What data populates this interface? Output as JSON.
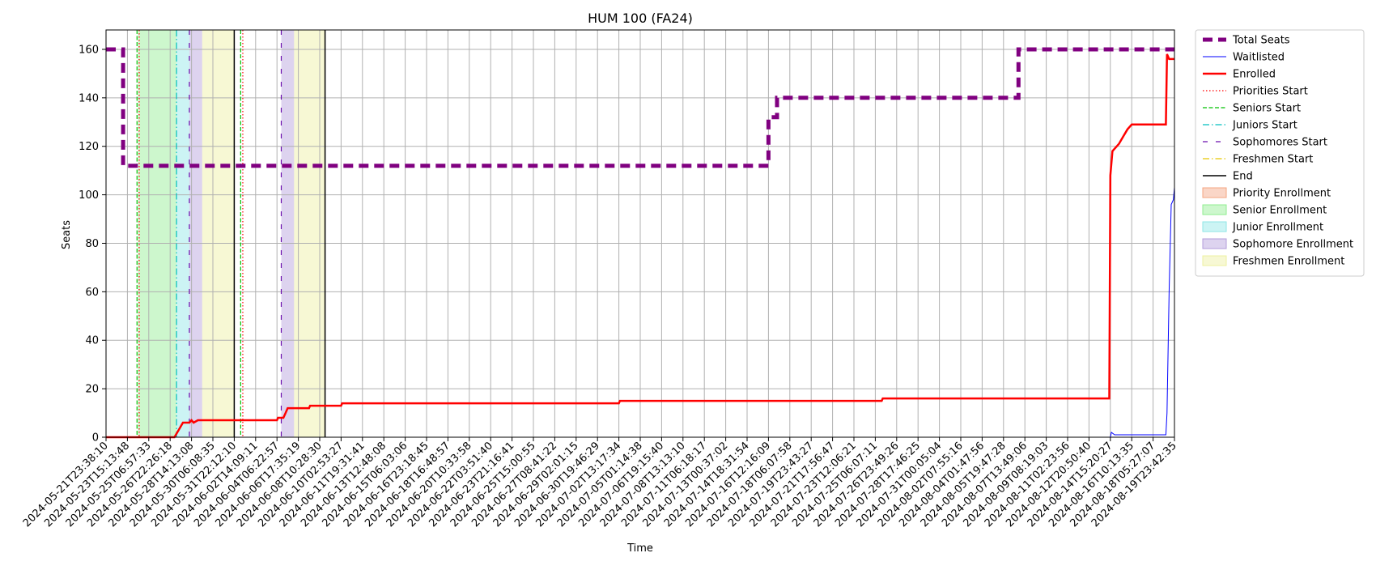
{
  "chart_data": {
    "type": "line",
    "title": "HUM 100 (FA24)",
    "xlabel": "Time",
    "ylabel": "Seats",
    "ylim": [
      0,
      168
    ],
    "y_ticks": [
      0,
      20,
      40,
      60,
      80,
      100,
      120,
      140,
      160
    ],
    "grid": true,
    "legend_position": "outside-right",
    "x_tick_labels": [
      "2024-05-21T23:38:10",
      "2024-05-23T15:13:48",
      "2024-05-25T06:57:33",
      "2024-05-26T22:26:18",
      "2024-05-28T14:13:08",
      "2024-05-30T06:08:35",
      "2024-05-31T22:12:10",
      "2024-06-02T14:09:11",
      "2024-06-04T06:22:57",
      "2024-06-06T17:35:19",
      "2024-06-08T10:28:30",
      "2024-06-10T02:53:27",
      "2024-06-11T19:31:41",
      "2024-06-13T12:48:08",
      "2024-06-15T06:03:06",
      "2024-06-16T23:18:45",
      "2024-06-18T16:48:57",
      "2024-06-20T10:33:58",
      "2024-06-22T03:51:40",
      "2024-06-23T21:16:41",
      "2024-06-25T15:00:55",
      "2024-06-27T08:41:22",
      "2024-06-29T02:01:15",
      "2024-06-30T19:46:29",
      "2024-07-02T13:17:34",
      "2024-07-05T01:14:38",
      "2024-07-06T19:15:40",
      "2024-07-08T13:13:10",
      "2024-07-11T06:18:17",
      "2024-07-13T00:37:02",
      "2024-07-14T18:31:54",
      "2024-07-16T12:16:09",
      "2024-07-18T06:07:58",
      "2024-07-19T23:43:27",
      "2024-07-21T17:56:47",
      "2024-07-23T12:06:21",
      "2024-07-25T06:07:11",
      "2024-07-26T23:49:26",
      "2024-07-28T17:46:25",
      "2024-07-31T00:05:04",
      "2024-08-02T07:55:16",
      "2024-08-04T01:47:56",
      "2024-08-05T19:47:28",
      "2024-08-07T13:49:06",
      "2024-08-09T08:19:03",
      "2024-08-11T02:23:56",
      "2024-08-12T20:50:40",
      "2024-08-14T15:20:27",
      "2024-08-16T10:13:35",
      "2024-08-18T05:27:07",
      "2024-08-19T23:42:35"
    ],
    "series": [
      {
        "name": "Total Seats",
        "color": "#800080",
        "style": "dashed",
        "width": 5,
        "points": [
          [
            0,
            160
          ],
          [
            0.8,
            160
          ],
          [
            0.8,
            112
          ],
          [
            31.0,
            112
          ],
          [
            31.0,
            132
          ],
          [
            31.4,
            132
          ],
          [
            31.4,
            140
          ],
          [
            42.7,
            140
          ],
          [
            42.7,
            160
          ],
          [
            50.0,
            160
          ]
        ]
      },
      {
        "name": "Waitlisted",
        "color": "#0000ff",
        "style": "solid",
        "width": 1,
        "points": [
          [
            0,
            0
          ],
          [
            47.0,
            0
          ],
          [
            47.05,
            2
          ],
          [
            47.2,
            1
          ],
          [
            49.6,
            1
          ],
          [
            49.65,
            10
          ],
          [
            49.75,
            60
          ],
          [
            49.85,
            96
          ],
          [
            49.95,
            98
          ],
          [
            50.0,
            103
          ]
        ]
      },
      {
        "name": "Enrolled",
        "color": "#ff0000",
        "style": "solid",
        "width": 2.5,
        "points": [
          [
            0,
            0
          ],
          [
            3.2,
            0
          ],
          [
            3.4,
            3
          ],
          [
            3.6,
            6
          ],
          [
            3.9,
            6
          ],
          [
            4.0,
            7
          ],
          [
            4.1,
            6
          ],
          [
            4.3,
            7
          ],
          [
            8.0,
            7
          ],
          [
            8.05,
            8
          ],
          [
            8.3,
            8
          ],
          [
            8.4,
            10
          ],
          [
            8.5,
            12
          ],
          [
            9.5,
            12
          ],
          [
            9.55,
            13
          ],
          [
            11.0,
            13
          ],
          [
            11.05,
            14
          ],
          [
            24.0,
            14
          ],
          [
            24.05,
            15
          ],
          [
            36.3,
            15
          ],
          [
            36.35,
            16
          ],
          [
            46.95,
            16
          ],
          [
            47.0,
            108
          ],
          [
            47.1,
            118
          ],
          [
            47.4,
            121
          ],
          [
            47.6,
            124
          ],
          [
            47.8,
            127
          ],
          [
            48.0,
            129
          ],
          [
            49.6,
            129
          ],
          [
            49.65,
            158
          ],
          [
            49.75,
            156
          ],
          [
            50.0,
            156
          ]
        ]
      },
      {
        "name": "Priorities Start",
        "color": "#ff0000",
        "style": "dotted",
        "width": 1.2,
        "vlines": [
          1.55,
          6.4
        ]
      },
      {
        "name": "Seniors Start",
        "color": "#00c000",
        "style": "dashed",
        "width": 1.2,
        "vlines": [
          1.45,
          6.3
        ]
      },
      {
        "name": "Juniors Start",
        "color": "#00bfbf",
        "style": "dashdot",
        "width": 1.2,
        "vlines": [
          3.3
        ]
      },
      {
        "name": "Sophomores Start",
        "color": "#6a0dad",
        "style": "loosedash",
        "width": 1.2,
        "vlines": [
          3.9,
          8.2
        ]
      },
      {
        "name": "Freshmen Start",
        "color": "#e6c800",
        "style": "dashdot",
        "width": 1.2,
        "vlines": []
      },
      {
        "name": "End",
        "color": "#000000",
        "style": "solid",
        "width": 1.5,
        "vlines": [
          6.0,
          10.25
        ]
      }
    ],
    "regions": [
      {
        "name": "Priority Enrollment",
        "color": "#f4a582",
        "spans": []
      },
      {
        "name": "Senior Enrollment",
        "color": "#90ee90",
        "spans": [
          [
            1.5,
            3.3
          ]
        ]
      },
      {
        "name": "Junior Enrollment",
        "color": "#8fe6e6",
        "spans": [
          [
            3.3,
            3.9
          ]
        ]
      },
      {
        "name": "Sophomore Enrollment",
        "color": "#b39ddb",
        "spans": [
          [
            3.9,
            4.5
          ],
          [
            8.2,
            8.8
          ]
        ]
      },
      {
        "name": "Freshmen Enrollment",
        "color": "#eef0a0",
        "spans": [
          [
            4.5,
            6.0
          ],
          [
            8.8,
            10.25
          ]
        ]
      }
    ]
  }
}
